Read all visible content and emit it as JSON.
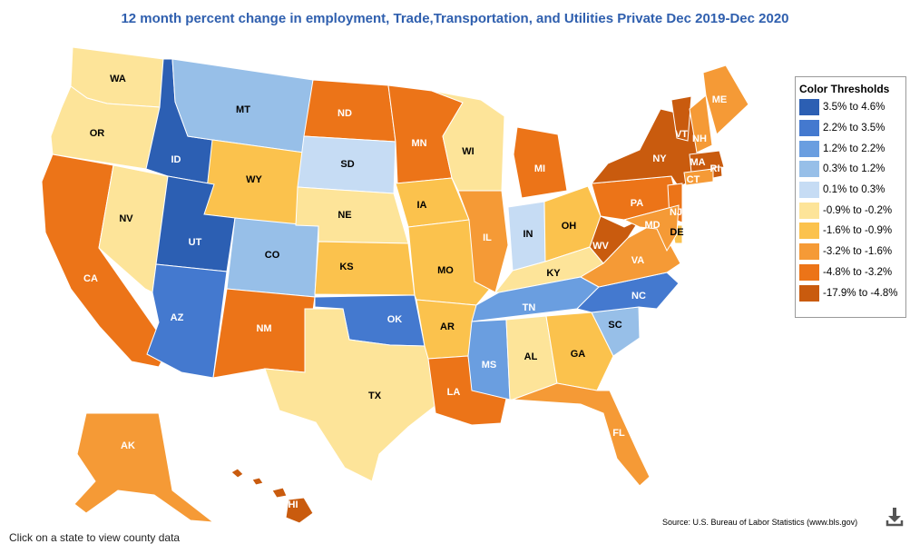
{
  "title": "12 month percent change in employment, Trade,Transportation, and Utilities Private Dec 2019-Dec 2020",
  "legend": {
    "title": "Color Thresholds",
    "items": [
      {
        "label": "3.5% to 4.6%",
        "color": "#2c5fb3"
      },
      {
        "label": "2.2% to 3.5%",
        "color": "#4479cf"
      },
      {
        "label": "1.2% to 2.2%",
        "color": "#6a9ee0"
      },
      {
        "label": "0.3% to 1.2%",
        "color": "#97bfe8"
      },
      {
        "label": "0.1% to 0.3%",
        "color": "#c6dcf4"
      },
      {
        "label": "-0.9% to -0.2%",
        "color": "#fde499"
      },
      {
        "label": "-1.6% to -0.9%",
        "color": "#fbc24d"
      },
      {
        "label": "-3.2% to -1.6%",
        "color": "#f59a36"
      },
      {
        "label": "-4.8% to -3.2%",
        "color": "#ec7418"
      },
      {
        "label": "-17.9% to -4.8%",
        "color": "#c95b0e"
      }
    ]
  },
  "states": [
    {
      "abbr": "WA",
      "bin": 5
    },
    {
      "abbr": "OR",
      "bin": 5
    },
    {
      "abbr": "CA",
      "bin": 8
    },
    {
      "abbr": "NV",
      "bin": 5
    },
    {
      "abbr": "ID",
      "bin": 0
    },
    {
      "abbr": "MT",
      "bin": 3
    },
    {
      "abbr": "WY",
      "bin": 6
    },
    {
      "abbr": "UT",
      "bin": 0
    },
    {
      "abbr": "CO",
      "bin": 3
    },
    {
      "abbr": "AZ",
      "bin": 1
    },
    {
      "abbr": "NM",
      "bin": 8
    },
    {
      "abbr": "ND",
      "bin": 8
    },
    {
      "abbr": "SD",
      "bin": 4
    },
    {
      "abbr": "NE",
      "bin": 5
    },
    {
      "abbr": "KS",
      "bin": 6
    },
    {
      "abbr": "OK",
      "bin": 1
    },
    {
      "abbr": "TX",
      "bin": 5
    },
    {
      "abbr": "MN",
      "bin": 8
    },
    {
      "abbr": "IA",
      "bin": 6
    },
    {
      "abbr": "MO",
      "bin": 6
    },
    {
      "abbr": "AR",
      "bin": 6
    },
    {
      "abbr": "LA",
      "bin": 8
    },
    {
      "abbr": "WI",
      "bin": 5
    },
    {
      "abbr": "IL",
      "bin": 7
    },
    {
      "abbr": "MI",
      "bin": 8
    },
    {
      "abbr": "IN",
      "bin": 4
    },
    {
      "abbr": "OH",
      "bin": 6
    },
    {
      "abbr": "KY",
      "bin": 5
    },
    {
      "abbr": "TN",
      "bin": 2
    },
    {
      "abbr": "MS",
      "bin": 2
    },
    {
      "abbr": "AL",
      "bin": 5
    },
    {
      "abbr": "GA",
      "bin": 6
    },
    {
      "abbr": "FL",
      "bin": 7
    },
    {
      "abbr": "SC",
      "bin": 3
    },
    {
      "abbr": "NC",
      "bin": 1
    },
    {
      "abbr": "VA",
      "bin": 7
    },
    {
      "abbr": "WV",
      "bin": 9
    },
    {
      "abbr": "PA",
      "bin": 8
    },
    {
      "abbr": "NY",
      "bin": 9
    },
    {
      "abbr": "VT",
      "bin": 9
    },
    {
      "abbr": "NH",
      "bin": 7
    },
    {
      "abbr": "ME",
      "bin": 7
    },
    {
      "abbr": "MA",
      "bin": 9
    },
    {
      "abbr": "RI",
      "bin": 9
    },
    {
      "abbr": "CT",
      "bin": 7
    },
    {
      "abbr": "NJ",
      "bin": 8
    },
    {
      "abbr": "DE",
      "bin": 6
    },
    {
      "abbr": "MD",
      "bin": 7
    },
    {
      "abbr": "AK",
      "bin": 7
    },
    {
      "abbr": "HI",
      "bin": 9
    }
  ],
  "source": "Source: U.S. Bureau of Labor Statistics (www.bls.gov)",
  "download_icon": "download-icon",
  "footer_note": "Click on a state to view county data"
}
